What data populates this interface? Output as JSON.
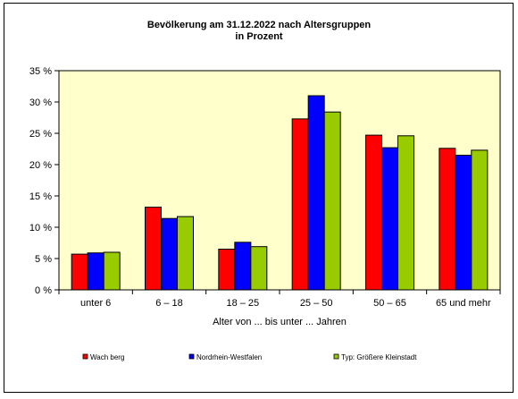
{
  "chart_data": {
    "type": "bar",
    "title_line1": "Bevölkerung am 31.12.2022 nach Altersgruppen",
    "title_line2": "in Prozent",
    "xlabel": "Alter von ... bis unter ... Jahren",
    "ylabel": "",
    "ylim": [
      0,
      35
    ],
    "yticks": [
      "0 %",
      "5 %",
      "10 %",
      "15 %",
      "20 %",
      "25 %",
      "30 %",
      "35 %"
    ],
    "grid": false,
    "legend_position": "bottom",
    "categories": [
      "unter 6",
      "6 – 18",
      "18 – 25",
      "25 – 50",
      "50 – 65",
      "65 und mehr"
    ],
    "series": [
      {
        "name": "Wach berg",
        "color": "#ff0000",
        "values": [
          5.7,
          13.2,
          6.5,
          27.3,
          24.7,
          22.6
        ]
      },
      {
        "name": "Nordrhein-Westfalen",
        "color": "#0000ff",
        "values": [
          5.9,
          11.4,
          7.6,
          31.0,
          22.7,
          21.5
        ]
      },
      {
        "name": "Typ: Größere Kleinstadt",
        "color": "#99cc00",
        "values": [
          6.0,
          11.7,
          6.9,
          28.4,
          24.6,
          22.3
        ]
      }
    ],
    "plot_background": "#ffffcc"
  }
}
